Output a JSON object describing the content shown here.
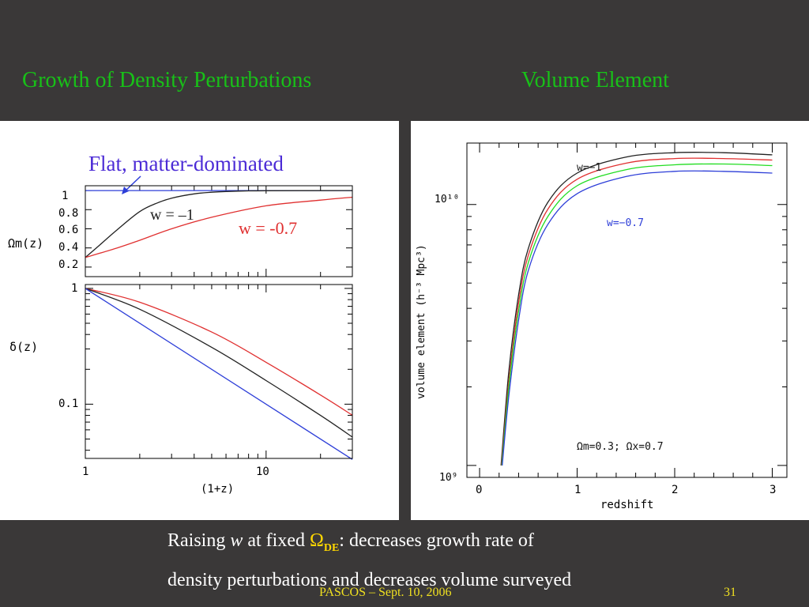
{
  "slide": {
    "title_left": "Growth of Density Perturbations",
    "title_right": "Volume Element",
    "caption": {
      "line1_prefix": "Raising ",
      "line1_w": "w",
      "line1_mid": " at fixed ",
      "line1_omega": "Ω",
      "line1_omega_sub": "DE",
      "line1_suffix": ": decreases growth rate of",
      "line2": "density perturbations and decreases volume surveyed"
    },
    "footer": "PASCOS – Sept. 10, 2006",
    "page_number": "31"
  },
  "colors": {
    "background": "#3a3838",
    "title": "#18c018",
    "footer": "#f0e020",
    "omega": "#ffd700"
  },
  "chart_data": [
    {
      "type": "line",
      "panel": "left-top",
      "annotation": "Flat, matter-dominated",
      "ylabel": "Ωm(z)",
      "xscale": "log",
      "xlim": [
        1,
        30
      ],
      "ylim": [
        0.1,
        1.05
      ],
      "yticks": [
        "1",
        "0.8",
        "0.6",
        "0.4",
        "0.2"
      ],
      "series": [
        {
          "name": "",
          "color": "#2d3ed8",
          "x": [
            1,
            30
          ],
          "y": [
            1,
            1
          ]
        },
        {
          "name": "w = –1",
          "color": "#222222",
          "x": [
            1,
            1.2,
            1.5,
            2,
            2.5,
            3,
            4,
            5,
            6,
            8,
            10,
            30
          ],
          "y": [
            0.3,
            0.43,
            0.59,
            0.78,
            0.87,
            0.92,
            0.965,
            0.982,
            0.99,
            0.996,
            0.998,
            1.0
          ]
        },
        {
          "name": "w = -0.7",
          "color": "#e03030",
          "x": [
            1,
            1.5,
            2,
            3,
            5,
            10,
            20,
            30
          ],
          "y": [
            0.3,
            0.4,
            0.48,
            0.6,
            0.72,
            0.84,
            0.9,
            0.93
          ]
        }
      ]
    },
    {
      "type": "line",
      "panel": "left-bottom",
      "xlabel": "(1+z)",
      "ylabel": "δ(z)",
      "xscale": "log",
      "yscale": "log",
      "xlim": [
        1,
        30
      ],
      "ylim": [
        0.034,
        1.08
      ],
      "xticks": [
        "1",
        "10"
      ],
      "yticks": [
        "1",
        "0.1"
      ],
      "series": [
        {
          "name": "",
          "color": "#e03030",
          "x": [
            1,
            2,
            5,
            10,
            20,
            30
          ],
          "y": [
            1.0,
            0.76,
            0.42,
            0.23,
            0.12,
            0.0803
          ]
        },
        {
          "name": "",
          "color": "#222222",
          "x": [
            1,
            2,
            5,
            10,
            20,
            30
          ],
          "y": [
            1.0,
            0.66,
            0.31,
            0.16,
            0.08,
            0.052
          ]
        },
        {
          "name": "",
          "color": "#2d3ed8",
          "x": [
            1,
            30
          ],
          "y": [
            1.0,
            0.0333
          ]
        }
      ]
    },
    {
      "type": "line",
      "panel": "right",
      "xlabel": "redshift",
      "ylabel": "volume element (h⁻³ Mpc³)",
      "yscale": "log",
      "xlim": [
        -0.13,
        3.15
      ],
      "ylim": [
        900000000.0,
        17200000000.0
      ],
      "xticks": [
        "0",
        "1",
        "2",
        "3"
      ],
      "yticks": [
        "10⁹",
        "10¹⁰"
      ],
      "annotation": "Ωm=0.3; Ωx=0.7",
      "series": [
        {
          "name": "w=−1",
          "color": "#222222",
          "x": [
            0.22,
            0.3,
            0.4,
            0.5,
            0.7,
            1,
            1.5,
            2,
            2.5,
            3
          ],
          "y": [
            1000000000.0,
            2300000000.0,
            4500000000.0,
            6800000000.0,
            10200000000.0,
            13200000000.0,
            15200000000.0,
            15800000000.0,
            15800000000.0,
            15500000000.0
          ]
        },
        {
          "name": "",
          "color": "#e03030",
          "x": [
            0.225,
            0.3,
            0.4,
            0.5,
            0.7,
            1,
            1.5,
            2,
            2.5,
            3
          ],
          "y": [
            1000000000.0,
            2100000000.0,
            4200000000.0,
            6400000000.0,
            9600000000.0,
            12500000000.0,
            14400000000.0,
            15000000000.0,
            15000000000.0,
            14800000000.0
          ]
        },
        {
          "name": "",
          "color": "#22dd22",
          "x": [
            0.228,
            0.3,
            0.4,
            0.5,
            0.7,
            1,
            1.5,
            2,
            2.5,
            3
          ],
          "y": [
            1000000000.0,
            2000000000.0,
            3900000000.0,
            6000000000.0,
            9000000000.0,
            11800000000.0,
            13600000000.0,
            14200000000.0,
            14300000000.0,
            14100000000.0
          ]
        },
        {
          "name": "w=−0.7",
          "color": "#2d3ed8",
          "x": [
            0.232,
            0.3,
            0.4,
            0.5,
            0.7,
            1,
            1.5,
            2,
            2.5,
            3
          ],
          "y": [
            1000000000.0,
            1850000000.0,
            3600000000.0,
            5600000000.0,
            8400000000.0,
            11000000000.0,
            12800000000.0,
            13400000000.0,
            13400000000.0,
            13200000000.0
          ]
        }
      ]
    }
  ]
}
